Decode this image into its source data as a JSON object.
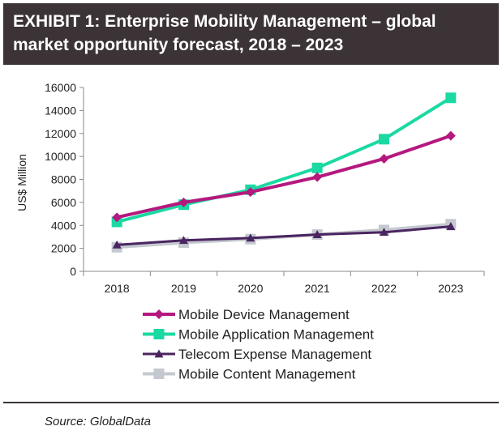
{
  "header": {
    "title": "EXHIBIT 1: Enterprise Mobility Management – global market opportunity forecast, 2018 – 2023"
  },
  "footer": {
    "source": "Source: GlobalData"
  },
  "chart_data": {
    "type": "line",
    "title": "",
    "xlabel": "",
    "ylabel": "US$ Million",
    "x": [
      "2018",
      "2019",
      "2020",
      "2021",
      "2022",
      "2023"
    ],
    "ylim": [
      0,
      16000
    ],
    "yticks": [
      0,
      2000,
      4000,
      6000,
      8000,
      10000,
      12000,
      14000,
      16000
    ],
    "grid": false,
    "legend_position": "bottom",
    "series": [
      {
        "name": "Mobile Device Management",
        "color": "#b5187e",
        "marker": "diamond",
        "values": [
          4700,
          6000,
          6900,
          8200,
          9800,
          11800
        ]
      },
      {
        "name": "Mobile Application Management",
        "color": "#1ad9a2",
        "marker": "square",
        "values": [
          4300,
          5800,
          7100,
          9000,
          11500,
          15100
        ]
      },
      {
        "name": "Telecom Expense Management",
        "color": "#4a2460",
        "marker": "triangle",
        "values": [
          2300,
          2700,
          2900,
          3200,
          3400,
          3900
        ]
      },
      {
        "name": "Mobile Content Management",
        "color": "#c4c8cf",
        "marker": "square",
        "values": [
          2100,
          2500,
          2800,
          3200,
          3600,
          4100
        ]
      }
    ]
  }
}
